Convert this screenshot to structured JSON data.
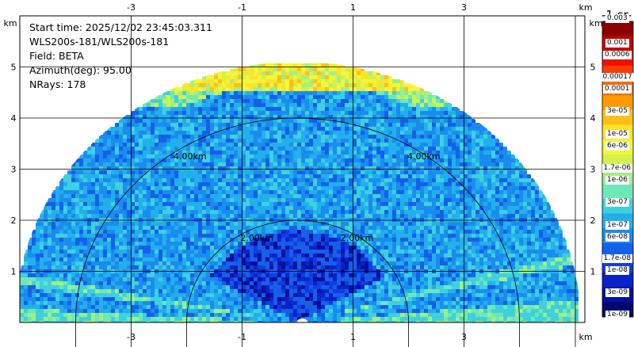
{
  "info": {
    "start_time": "Start time: 2025/12/02 23:45:03.311",
    "instrument": "WLS200s-181/WLS200s-181",
    "field": "Field: BETA",
    "azimuth": "Azimuth(deg): 95.00",
    "nrays": "NRays: 178"
  },
  "colorbar": {
    "title": "-1 sr-",
    "top_label": "0.003",
    "labels": [
      "0.001",
      "0.0006",
      "0.00017",
      "0.0001",
      "3e-05",
      "1e-05",
      "6e-06",
      "1.7e-06",
      "1e-06",
      "3e-07",
      "1e-07",
      "6e-08",
      "1.7e-08",
      "1e-08",
      "3e-09",
      "1e-09"
    ],
    "colors": [
      "#8b0000",
      "#c40000",
      "#ee1100",
      "#ff3a00",
      "#ff6a00",
      "#ff9a00",
      "#ffbf1a",
      "#ffe22a",
      "#f5f53a",
      "#d4f04a",
      "#9ff082",
      "#6ee8b8",
      "#3fd0e0",
      "#22b0ec",
      "#1a8cf0",
      "#1560e8",
      "#0f3ee0",
      "#0a22c8",
      "#06109c",
      "#020870"
    ]
  },
  "chart_data": {
    "type": "heatmap",
    "projection": "RHI",
    "xlabel_unit": "km",
    "ylabel_unit": "km",
    "x_ticks": [
      -3,
      -1,
      1,
      3
    ],
    "y_ticks": [
      1,
      2,
      3,
      4,
      5
    ],
    "xlim": [
      -5.05,
      5.05
    ],
    "ylim": [
      0,
      5.9
    ],
    "max_range_km": 5.1,
    "range_rings": [
      {
        "r": 2.0,
        "label": "2.00km"
      },
      {
        "r": 4.0,
        "label": "4.00km"
      }
    ],
    "grid": true
  }
}
